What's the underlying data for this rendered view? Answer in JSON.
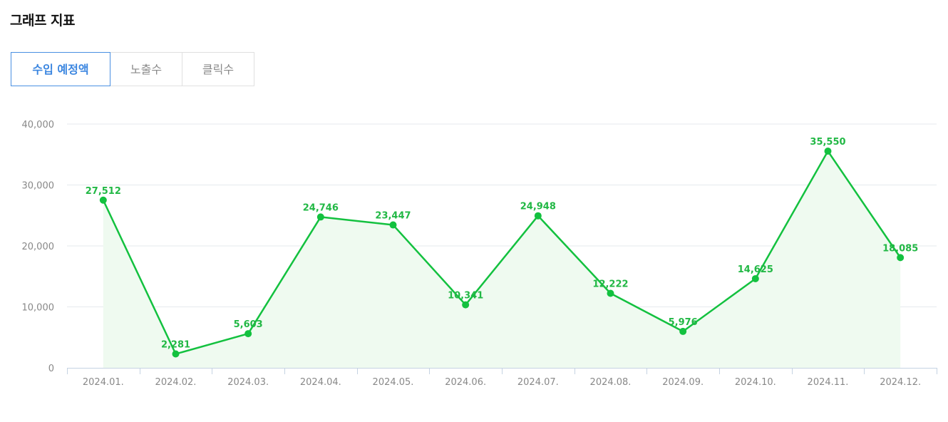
{
  "page_title": "그래프 지표",
  "tabs": [
    {
      "label": "수입 예정액",
      "active": true
    },
    {
      "label": "노출수",
      "active": false
    },
    {
      "label": "클릭수",
      "active": false
    }
  ],
  "colors": {
    "line": "#13c13f",
    "area": "#effaf0",
    "label": "#22b845",
    "grid": "#e6e9ee",
    "axis": "#c5d3e2",
    "active_tab": "#3b86e0"
  },
  "chart_data": {
    "type": "line",
    "title": "",
    "xlabel": "",
    "ylabel": "",
    "categories": [
      "2024.01.",
      "2024.02.",
      "2024.03.",
      "2024.04.",
      "2024.05.",
      "2024.06.",
      "2024.07.",
      "2024.08.",
      "2024.09.",
      "2024.10.",
      "2024.11.",
      "2024.12."
    ],
    "series": [
      {
        "values": [
          27512,
          2281,
          5603,
          24746,
          23447,
          10341,
          24948,
          12222,
          5976,
          14625,
          35550,
          18085
        ],
        "labels": [
          "27,512",
          "2,281",
          "5,603",
          "24,746",
          "23,447",
          "10,341",
          "24,948",
          "12,222",
          "5,976",
          "14,625",
          "35,550",
          "18,085"
        ]
      }
    ],
    "ylim": [
      0,
      40000
    ],
    "yticks": [
      0,
      10000,
      20000,
      30000,
      40000
    ],
    "ytick_labels": [
      "0",
      "10,000",
      "20,000",
      "30,000",
      "40,000"
    ],
    "grid": true,
    "area_fill": true
  }
}
